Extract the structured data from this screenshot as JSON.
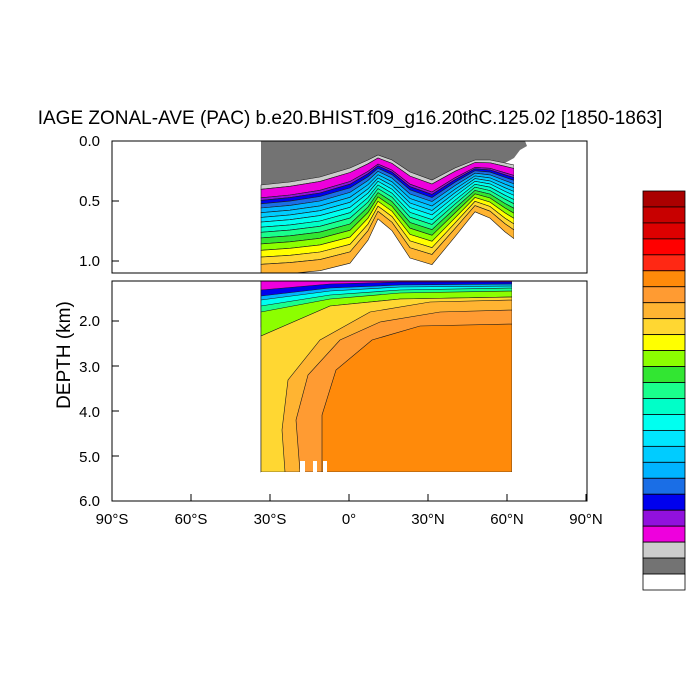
{
  "chart_data": {
    "type": "heatmap",
    "title": "IAGE ZONAL-AVE (PAC) b.e20.BHIST.f09_g16.20thC.125.02 [1850-1863]",
    "xlabel": "",
    "ylabel": "DEPTH (km)",
    "x_ticks": [
      "90°S",
      "60°S",
      "30°S",
      "0°",
      "30°N",
      "60°N",
      "90°N"
    ],
    "y_ticks_upper": [
      "0.0",
      "0.5",
      "1.0"
    ],
    "y_ticks_lower": [
      "2.0",
      "3.0",
      "4.0",
      "5.0",
      "6.0"
    ],
    "xlim": [
      -90,
      90
    ],
    "ylim_upper_km": [
      0,
      1.1
    ],
    "ylim_lower_km": [
      1.1,
      6.0
    ],
    "data_extent_lat": [
      -33,
      62
    ],
    "legend_placement": "right",
    "colors": {
      "land": "#737373",
      "levels": [
        "#ffffff",
        "#737373",
        "#cccccc",
        "#ee00dd",
        "#9111dd",
        "#0000ee",
        "#1a6ee6",
        "#00b4ff",
        "#00ccff",
        "#00e6ff",
        "#00fff0",
        "#00ffc8",
        "#1aff8c",
        "#32e632",
        "#8cff00",
        "#ffff00",
        "#ffd732",
        "#ffb432",
        "#ff9b32",
        "#ff8a0a",
        "#ff2814",
        "#ff0000",
        "#dd0000",
        "#c80000",
        "#aa0000"
      ]
    }
  }
}
